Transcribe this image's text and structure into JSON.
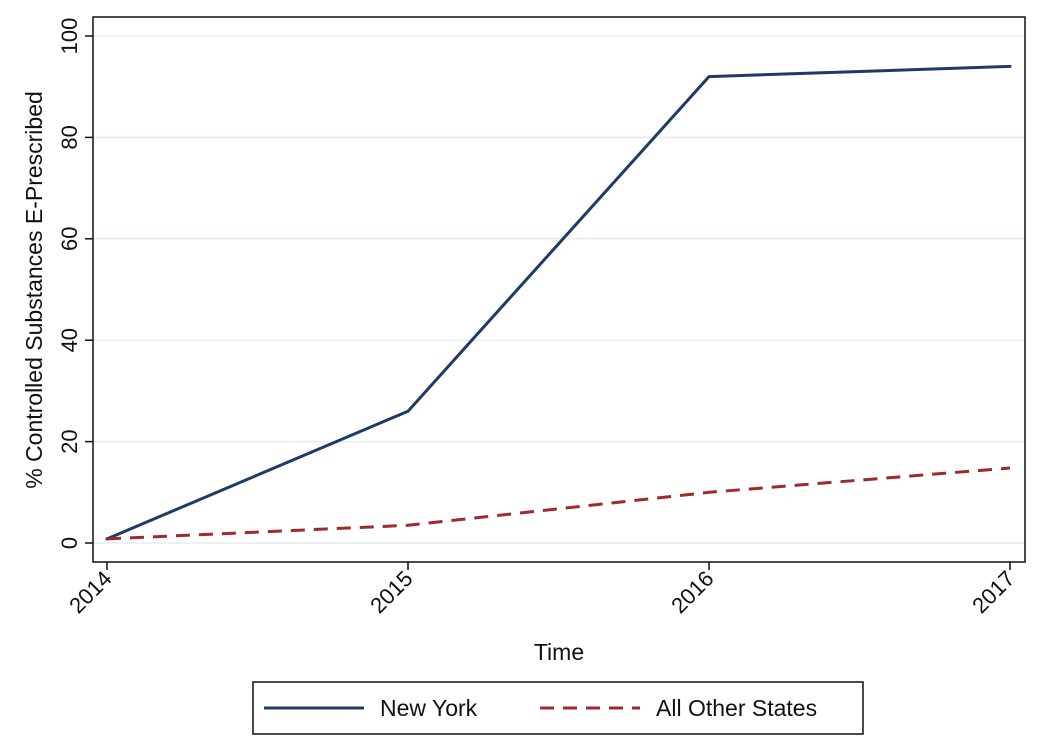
{
  "chart_data": {
    "type": "line",
    "title": "",
    "xlabel": "Time",
    "ylabel": "% Controlled Substances E-Prescribed",
    "x": [
      "2014",
      "2015",
      "2016",
      "2017"
    ],
    "ylim": [
      0,
      100
    ],
    "yticks": [
      0,
      20,
      40,
      60,
      80,
      100
    ],
    "grid": true,
    "legend_position": "bottom",
    "series": [
      {
        "name": "New York",
        "values": [
          0.8,
          26,
          92,
          94
        ],
        "color": "#1f3b63",
        "style": "solid"
      },
      {
        "name": "All Other States",
        "values": [
          0.8,
          3.5,
          10,
          14.8
        ],
        "color": "#9e2a2b",
        "style": "dashed"
      }
    ]
  }
}
